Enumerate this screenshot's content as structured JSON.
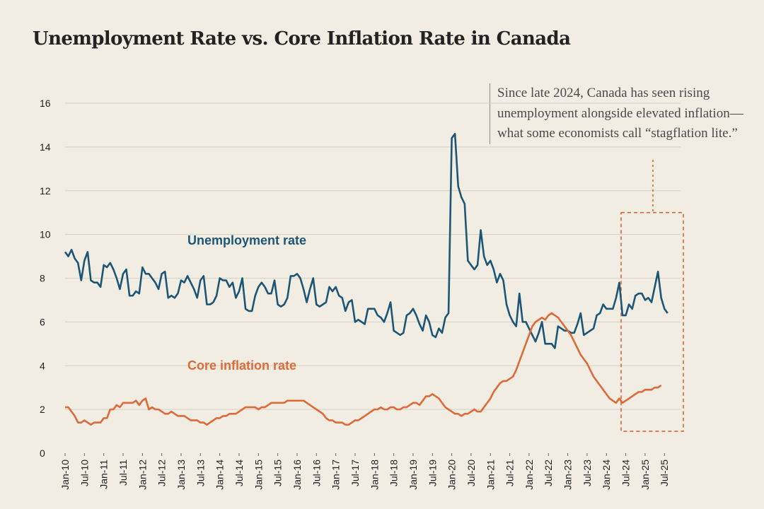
{
  "title": "Unemployment Rate vs. Core Inflation Rate in Canada",
  "annotation": "Since late 2024, Canada has seen rising unemployment alongside elevated inflation—what some economists call “stagflation lite.”",
  "colors": {
    "unemployment": "#1d5577",
    "inflation": "#dd6a3a",
    "highlight": "#d9643a",
    "grid": "#d6d1c4",
    "background": "#f1ede2"
  },
  "chart_data": {
    "type": "line",
    "x_unit": "month",
    "x_start": "2010-01",
    "x_end": "2025-12",
    "ylim": [
      0,
      16
    ],
    "yticks": [
      0,
      2,
      4,
      6,
      8,
      10,
      12,
      14,
      16
    ],
    "xticks": [
      "Jan-10",
      "Jul-10",
      "Jan-11",
      "Jul-11",
      "Jan-12",
      "Jul-12",
      "Jan-13",
      "Jul-13",
      "Jan-14",
      "Jul-14",
      "Jan-15",
      "Jul-15",
      "Jan-16",
      "Jul-16",
      "Jan-17",
      "Jul-17",
      "Jan-18",
      "Jul-18",
      "Jan-19",
      "Jul-19",
      "Jan-20",
      "Jul-20",
      "Jan-21",
      "Jul-21",
      "Jan-22",
      "Jul-22",
      "Jan-23",
      "Jul-23",
      "Jan-24",
      "Jul-24",
      "Jan-25",
      "Jul-25"
    ],
    "grid": "horizontal",
    "highlight_region": {
      "from": "2024-06",
      "to": "2025-12",
      "ymin": 1.0,
      "ymax": 11.0,
      "style": "dashed"
    },
    "series": [
      {
        "name": "Unemployment rate",
        "start": "2010-01",
        "values": [
          9.2,
          9.0,
          9.3,
          8.9,
          8.7,
          7.9,
          8.8,
          9.2,
          7.9,
          7.8,
          7.8,
          7.6,
          8.6,
          8.5,
          8.7,
          8.4,
          8.0,
          7.5,
          8.2,
          8.4,
          7.2,
          7.2,
          7.4,
          7.3,
          8.5,
          8.2,
          8.2,
          8.0,
          7.8,
          7.5,
          8.2,
          8.3,
          7.1,
          7.2,
          7.1,
          7.3,
          7.9,
          7.8,
          8.1,
          7.8,
          7.5,
          7.1,
          7.9,
          8.1,
          6.8,
          6.8,
          6.9,
          7.2,
          8.0,
          7.9,
          7.9,
          7.6,
          7.8,
          7.1,
          7.4,
          8.0,
          6.6,
          6.5,
          6.5,
          7.2,
          7.6,
          7.8,
          7.6,
          7.3,
          7.3,
          7.9,
          6.8,
          6.7,
          6.8,
          7.1,
          8.1,
          8.1,
          8.2,
          8.0,
          7.5,
          6.9,
          7.5,
          8.0,
          6.8,
          6.7,
          6.8,
          6.9,
          7.6,
          7.4,
          7.6,
          7.2,
          7.1,
          6.5,
          6.9,
          7.0,
          6.0,
          6.1,
          6.0,
          5.9,
          6.6,
          6.6,
          6.6,
          6.3,
          6.2,
          6.0,
          6.4,
          6.9,
          5.6,
          5.5,
          5.4,
          5.5,
          6.3,
          6.4,
          6.6,
          6.3,
          5.9,
          5.6,
          6.3,
          6.0,
          5.4,
          5.3,
          5.7,
          5.5,
          6.2,
          6.4,
          14.4,
          14.6,
          12.2,
          11.7,
          11.4,
          8.8,
          8.6,
          8.4,
          8.6,
          10.2,
          9.0,
          8.6,
          8.8,
          8.4,
          7.8,
          8.2,
          7.9,
          6.8,
          6.3,
          6.0,
          5.8,
          7.3,
          6.0,
          6.0,
          5.7,
          5.4,
          5.1,
          5.5,
          6.0,
          5.0,
          5.0,
          5.0,
          4.8,
          5.8,
          5.7,
          5.6,
          5.6,
          5.5,
          5.5,
          5.9,
          6.4,
          5.4,
          5.5,
          5.6,
          5.7,
          6.3,
          6.4,
          6.8,
          6.6,
          6.6,
          6.6,
          7.1,
          7.8,
          6.3,
          6.3,
          6.8,
          6.6,
          7.2,
          7.3,
          7.3,
          7.0,
          7.1,
          6.9,
          7.6,
          8.3,
          7.1,
          6.6,
          6.4
        ]
      },
      {
        "name": "Core inflation rate",
        "start": "2010-01",
        "values": [
          2.1,
          2.1,
          1.9,
          1.7,
          1.4,
          1.4,
          1.5,
          1.4,
          1.3,
          1.4,
          1.4,
          1.4,
          1.6,
          1.6,
          2.0,
          2.0,
          2.2,
          2.1,
          2.3,
          2.3,
          2.3,
          2.3,
          2.4,
          2.2,
          2.4,
          2.5,
          2.0,
          2.1,
          2.0,
          2.0,
          1.9,
          1.8,
          1.8,
          1.9,
          1.8,
          1.7,
          1.7,
          1.7,
          1.6,
          1.5,
          1.5,
          1.5,
          1.4,
          1.4,
          1.3,
          1.4,
          1.5,
          1.6,
          1.6,
          1.7,
          1.7,
          1.8,
          1.8,
          1.8,
          1.9,
          2.0,
          2.1,
          2.1,
          2.1,
          2.1,
          2.0,
          2.1,
          2.1,
          2.2,
          2.3,
          2.3,
          2.3,
          2.3,
          2.3,
          2.4,
          2.4,
          2.4,
          2.4,
          2.4,
          2.4,
          2.3,
          2.2,
          2.1,
          2.0,
          1.9,
          1.8,
          1.6,
          1.5,
          1.5,
          1.4,
          1.4,
          1.4,
          1.3,
          1.3,
          1.4,
          1.5,
          1.5,
          1.6,
          1.7,
          1.8,
          1.9,
          2.0,
          2.0,
          2.1,
          2.0,
          2.0,
          2.1,
          2.1,
          2.0,
          2.0,
          2.1,
          2.1,
          2.2,
          2.3,
          2.3,
          2.2,
          2.4,
          2.6,
          2.6,
          2.7,
          2.6,
          2.5,
          2.3,
          2.1,
          2.0,
          1.9,
          1.8,
          1.8,
          1.7,
          1.8,
          1.8,
          1.9,
          2.0,
          1.9,
          1.9,
          2.1,
          2.3,
          2.5,
          2.8,
          3.0,
          3.2,
          3.3,
          3.3,
          3.4,
          3.5,
          3.8,
          4.2,
          4.6,
          5.0,
          5.4,
          5.8,
          6.0,
          6.1,
          6.2,
          6.1,
          6.3,
          6.4,
          6.3,
          6.2,
          6.0,
          5.8,
          5.6,
          5.4,
          5.1,
          4.8,
          4.5,
          4.3,
          4.1,
          3.8,
          3.5,
          3.3,
          3.1,
          2.9,
          2.7,
          2.5,
          2.4,
          2.3,
          2.5,
          2.3,
          2.4,
          2.5,
          2.6,
          2.7,
          2.8,
          2.8,
          2.9,
          2.9,
          2.9,
          3.0,
          3.0,
          3.1
        ]
      }
    ]
  }
}
